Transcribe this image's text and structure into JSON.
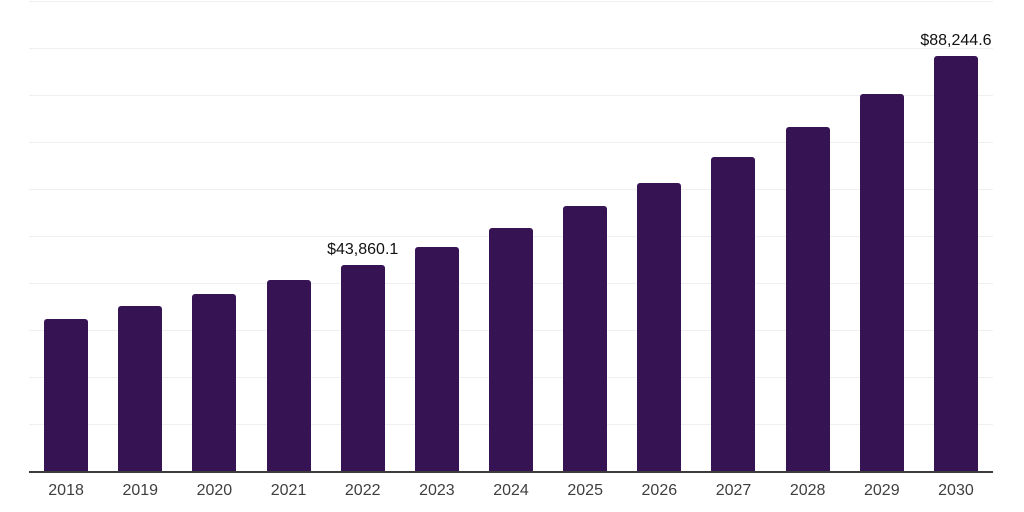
{
  "chart_data": {
    "type": "bar",
    "title": "",
    "xlabel": "",
    "ylabel": "",
    "categories": [
      "2018",
      "2019",
      "2020",
      "2021",
      "2022",
      "2023",
      "2024",
      "2025",
      "2026",
      "2027",
      "2028",
      "2029",
      "2030"
    ],
    "values": [
      32300,
      35100,
      37700,
      40700,
      43860.1,
      47700,
      51700,
      56300,
      61200,
      66900,
      73200,
      80300,
      88244.6
    ],
    "value_labels": [
      {
        "index": 4,
        "category": "2022",
        "text": "$43,860.1"
      },
      {
        "index": 12,
        "category": "2030",
        "text": "$88,244.6"
      }
    ],
    "ylim": [
      0,
      100000
    ],
    "gridline_step": 10000,
    "grid": true,
    "legend": "none",
    "bar_color": "#361352",
    "axis_color": "#3c3c3c",
    "gridline_color": "#efefef",
    "tick_label_color": "#3f3f3f",
    "value_label_color": "#111111",
    "background": "#ffffff"
  }
}
